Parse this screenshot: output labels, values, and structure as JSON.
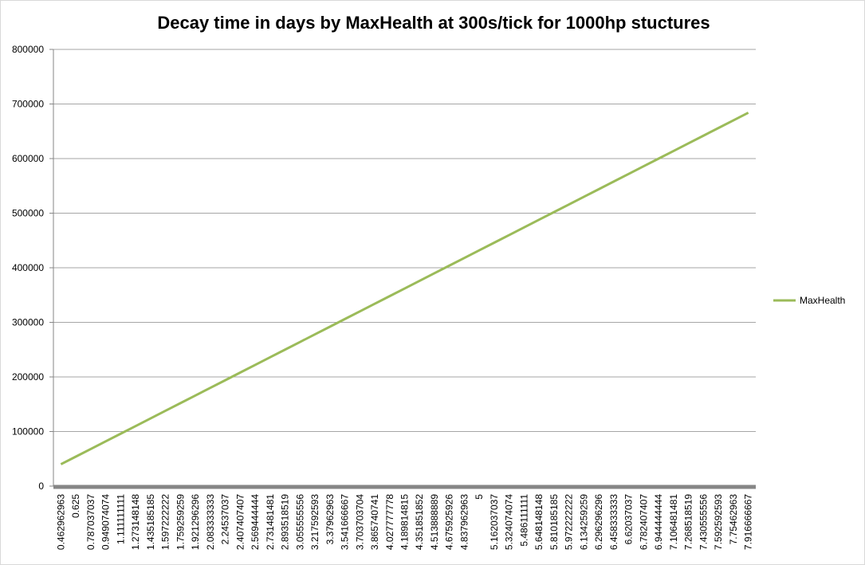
{
  "chart_data": {
    "type": "line",
    "title": "Decay time in days by MaxHealth at 300s/tick for 1000hp stuctures",
    "categories": [
      "0.462962963",
      "0.625",
      "0.787037037",
      "0.949074074",
      "1.111111111",
      "1.273148148",
      "1.435185185",
      "1.597222222",
      "1.759259259",
      "1.921296296",
      "2.083333333",
      "2.24537037",
      "2.407407407",
      "2.569444444",
      "2.731481481",
      "2.893518519",
      "3.055555556",
      "3.217592593",
      "3.37962963",
      "3.541666667",
      "3.703703704",
      "3.865740741",
      "4.027777778",
      "4.189814815",
      "4.351851852",
      "4.513888889",
      "4.675925926",
      "4.837962963",
      "5",
      "5.162037037",
      "5.324074074",
      "5.486111111",
      "5.648148148",
      "5.810185185",
      "5.972222222",
      "6.134259259",
      "6.296296296",
      "6.458333333",
      "6.62037037",
      "6.782407407",
      "6.944444444",
      "7.106481481",
      "7.268518519",
      "7.430555556",
      "7.592592593",
      "7.75462963",
      "7.916666667"
    ],
    "series": [
      {
        "name": "MaxHealth",
        "color": "#9bbb59",
        "values": [
          40000,
          54000,
          68000,
          82000,
          96000,
          110000,
          124000,
          138000,
          152000,
          166000,
          180000,
          194000,
          208000,
          222000,
          236000,
          250000,
          264000,
          278000,
          292000,
          306000,
          320000,
          334000,
          348000,
          362000,
          376000,
          390000,
          404000,
          418000,
          432000,
          446000,
          460000,
          474000,
          488000,
          502000,
          516000,
          530000,
          544000,
          558000,
          572000,
          586000,
          600000,
          614000,
          628000,
          642000,
          656000,
          670000,
          684000
        ]
      }
    ],
    "ylim": [
      0,
      800000
    ],
    "yticks": [
      0,
      100000,
      200000,
      300000,
      400000,
      500000,
      600000,
      700000,
      800000
    ],
    "grid": true,
    "legend": "right"
  }
}
